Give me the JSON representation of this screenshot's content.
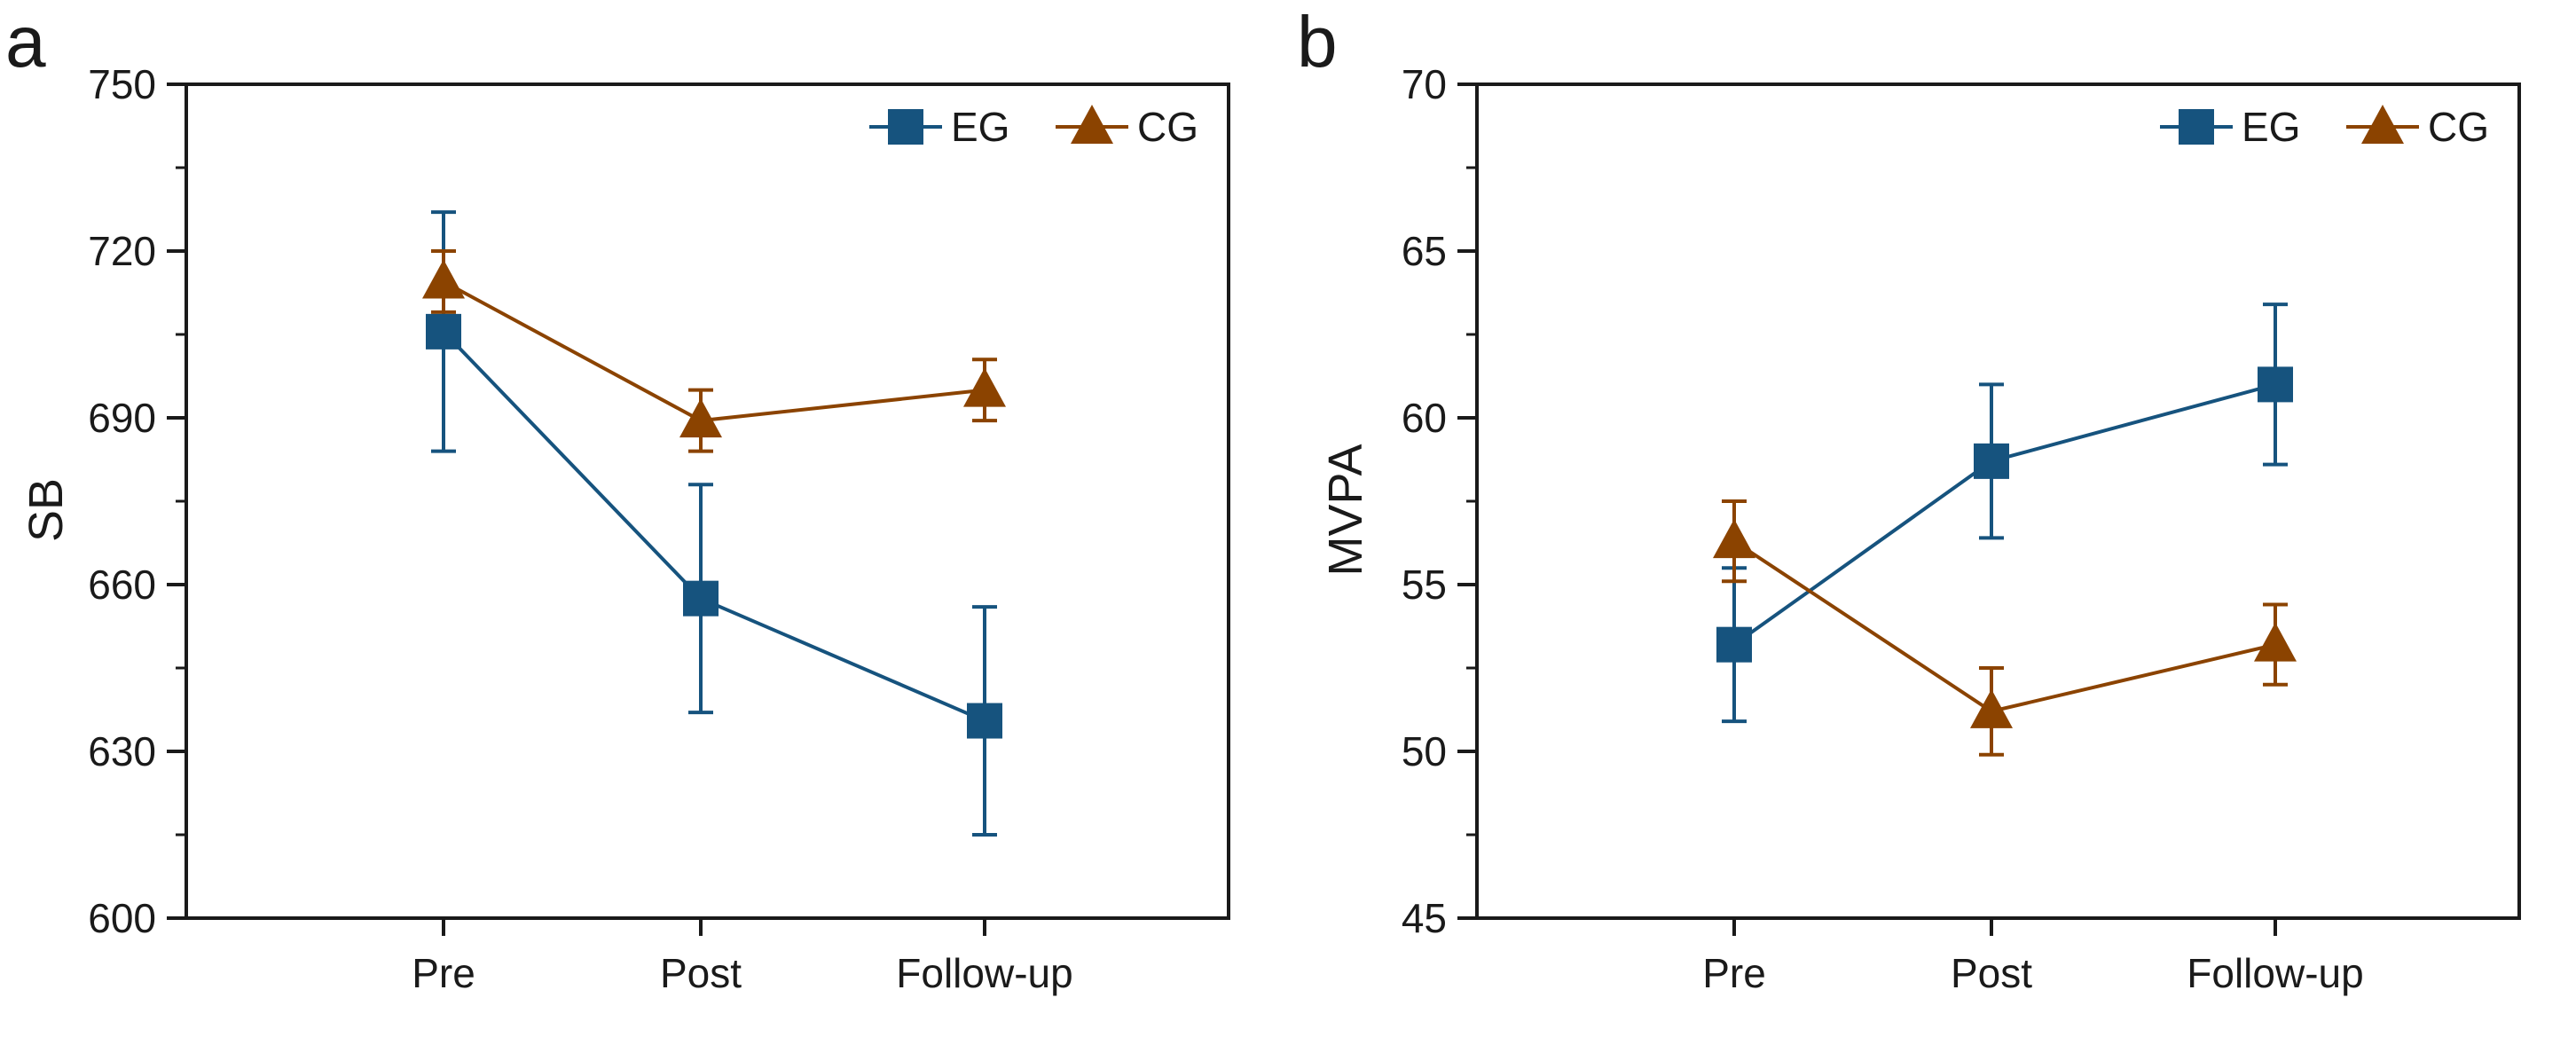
{
  "colors": {
    "eg": "#16537e",
    "cg": "#8b4300",
    "axis": "#1a1a1a"
  },
  "chart_data": [
    {
      "type": "line",
      "panel_label": "a",
      "title": "",
      "xlabel": "",
      "ylabel": "SB",
      "categories": [
        "Pre",
        "Post",
        "Follow-up"
      ],
      "ylim": [
        600,
        750
      ],
      "yticks": [
        "600",
        "630",
        "660",
        "690",
        "720",
        "750"
      ],
      "grid": false,
      "legend": "top-right",
      "series": [
        {
          "name": "EG",
          "marker": "square",
          "values": [
            705.5,
            657.5,
            635.5
          ],
          "errors": [
            21.5,
            20.5,
            20.5
          ]
        },
        {
          "name": "CG",
          "marker": "triangle",
          "values": [
            714.5,
            689.5,
            695
          ],
          "errors": [
            5.5,
            5.5,
            5.5
          ]
        }
      ]
    },
    {
      "type": "line",
      "panel_label": "b",
      "title": "",
      "xlabel": "",
      "ylabel": "MVPA",
      "categories": [
        "Pre",
        "Post",
        "Follow-up"
      ],
      "ylim": [
        45,
        70
      ],
      "yticks": [
        "45",
        "50",
        "55",
        "60",
        "65",
        "70"
      ],
      "grid": false,
      "legend": "top-right",
      "series": [
        {
          "name": "EG",
          "marker": "square",
          "values": [
            53.2,
            58.7,
            61.0
          ],
          "errors": [
            2.3,
            2.3,
            2.4
          ]
        },
        {
          "name": "CG",
          "marker": "triangle",
          "values": [
            56.3,
            51.2,
            53.2
          ],
          "errors": [
            1.2,
            1.3,
            1.2
          ]
        }
      ]
    }
  ]
}
